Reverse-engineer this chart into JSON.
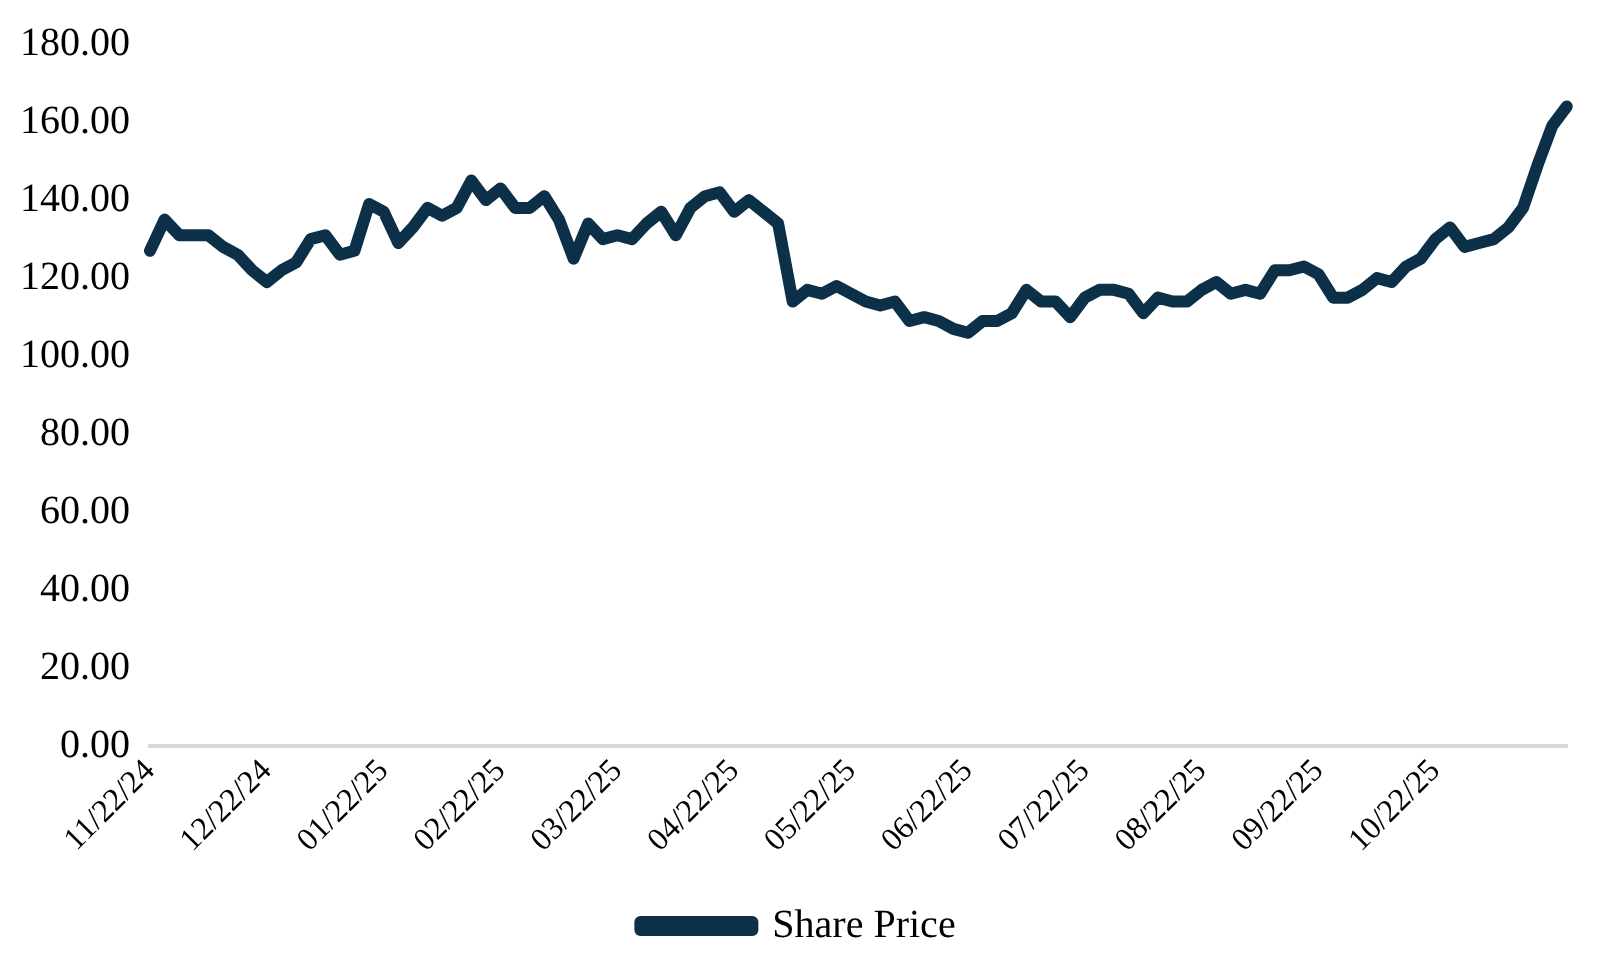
{
  "chart_data": {
    "type": "line",
    "categories": [
      "11/22/24",
      null,
      null,
      null,
      null,
      null,
      null,
      null,
      "12/22/24",
      null,
      null,
      null,
      null,
      null,
      null,
      null,
      "01/22/25",
      null,
      null,
      null,
      null,
      null,
      null,
      null,
      "02/22/25",
      null,
      null,
      null,
      null,
      null,
      null,
      null,
      "03/22/25",
      null,
      null,
      null,
      null,
      null,
      null,
      null,
      "04/22/25",
      null,
      null,
      null,
      null,
      null,
      null,
      null,
      "05/22/25",
      null,
      null,
      null,
      null,
      null,
      null,
      null,
      "06/22/25",
      null,
      null,
      null,
      null,
      null,
      null,
      null,
      "07/22/25",
      null,
      null,
      null,
      null,
      null,
      null,
      null,
      "08/22/25",
      null,
      null,
      null,
      null,
      null,
      null,
      null,
      "09/22/25",
      null,
      null,
      null,
      null,
      null,
      null,
      null,
      "10/22/25",
      null,
      null,
      null,
      null,
      null,
      null,
      null,
      null,
      null
    ],
    "series": [
      {
        "name": "Share Price",
        "color": "#0d3049",
        "values": [
          127,
          135,
          131,
          131,
          131,
          128,
          126,
          122,
          119,
          122,
          124,
          130,
          131,
          126,
          127,
          139,
          137,
          129,
          133,
          138,
          136,
          138,
          145,
          140,
          143,
          138,
          138,
          141,
          135,
          125,
          134,
          130,
          131,
          130,
          134,
          137,
          131,
          138,
          141,
          142,
          137,
          140,
          137,
          134,
          114,
          117,
          116,
          118,
          116,
          114,
          113,
          114,
          109,
          110,
          109,
          107,
          106,
          109,
          109,
          111,
          117,
          114,
          114,
          110,
          115,
          117,
          117,
          116,
          111,
          115,
          114,
          114,
          117,
          119,
          116,
          117,
          116,
          122,
          122,
          123,
          121,
          115,
          115,
          117,
          120,
          119,
          123,
          125,
          130,
          133,
          128,
          129,
          130,
          133,
          138,
          149,
          159,
          164
        ]
      }
    ],
    "ylim": [
      0,
      180
    ],
    "yticks": [
      {
        "value": 0,
        "label": "0.00"
      },
      {
        "value": 20,
        "label": "20.00"
      },
      {
        "value": 40,
        "label": "40.00"
      },
      {
        "value": 60,
        "label": "60.00"
      },
      {
        "value": 80,
        "label": "80.00"
      },
      {
        "value": 100,
        "label": "100.00"
      },
      {
        "value": 120,
        "label": "120.00"
      },
      {
        "value": 140,
        "label": "140.00"
      },
      {
        "value": 160,
        "label": "160.00"
      },
      {
        "value": 180,
        "label": "180.00"
      }
    ],
    "grid": false,
    "legend": "bottom",
    "marker": "none",
    "line_style": "solid"
  }
}
